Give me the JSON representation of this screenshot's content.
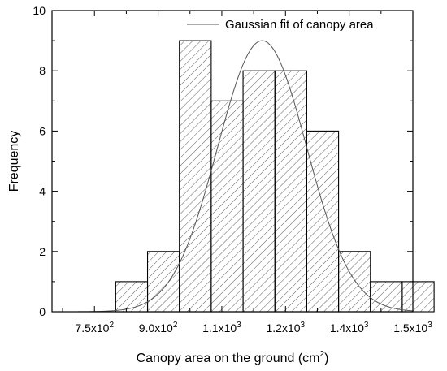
{
  "chart_data": {
    "type": "bar",
    "title": "",
    "xlabel": "Canopy area on the ground (cm",
    "xlabel_sup": "2",
    "xlabel_end": ")",
    "ylabel": "Frequency",
    "xlim": [
      650,
      1500
    ],
    "ylim": [
      0,
      10
    ],
    "x_ticks": [
      {
        "value": 750,
        "mantissa": "7.5x10",
        "exp": "2"
      },
      {
        "value": 900,
        "mantissa": "9.0x10",
        "exp": "2"
      },
      {
        "value": 1050,
        "mantissa": "1.1x10",
        "exp": "3"
      },
      {
        "value": 1200,
        "mantissa": "1.2x10",
        "exp": "3"
      },
      {
        "value": 1350,
        "mantissa": "1.4x10",
        "exp": "3"
      },
      {
        "value": 1500,
        "mantissa": "1.5x10",
        "exp": "3"
      }
    ],
    "y_ticks": [
      0,
      2,
      4,
      6,
      8,
      10
    ],
    "bins": [
      {
        "x0": 800,
        "x1": 875,
        "count": 1
      },
      {
        "x0": 875,
        "x1": 950,
        "count": 2
      },
      {
        "x0": 950,
        "x1": 1025,
        "count": 9
      },
      {
        "x0": 1025,
        "x1": 1100,
        "count": 7
      },
      {
        "x0": 1100,
        "x1": 1175,
        "count": 8
      },
      {
        "x0": 1175,
        "x1": 1250,
        "count": 8
      },
      {
        "x0": 1250,
        "x1": 1325,
        "count": 6
      },
      {
        "x0": 1325,
        "x1": 1400,
        "count": 2
      },
      {
        "x0": 1400,
        "x1": 1475,
        "count": 1
      },
      {
        "x0": 1475,
        "x1": 1550,
        "count": 1
      }
    ],
    "fit": {
      "name": "Gaussian fit of canopy area",
      "amplitude": 9,
      "mean": 1145,
      "sigma": 105
    },
    "legend_position": "top-right",
    "grid": false
  }
}
